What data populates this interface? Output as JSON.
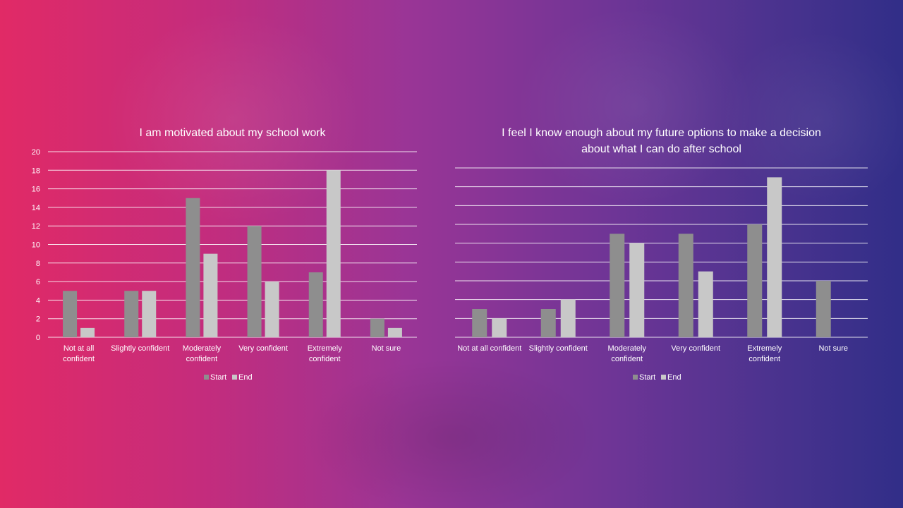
{
  "colors": {
    "start": "#8e8e8e",
    "end": "#c8c8c8"
  },
  "chart_data": [
    {
      "type": "bar",
      "title_lines": [
        "I am motivated about my school work"
      ],
      "categories": [
        [
          "Not at all",
          "confident"
        ],
        [
          "Slightly confident"
        ],
        [
          "Moderately",
          "confident"
        ],
        [
          "Very confident"
        ],
        [
          "Extremely",
          "confident"
        ],
        [
          "Not sure"
        ]
      ],
      "series": [
        {
          "name": "Start",
          "values": [
            5,
            5,
            15,
            12,
            7,
            2
          ]
        },
        {
          "name": "End",
          "values": [
            1,
            5,
            9,
            6,
            18,
            1
          ]
        }
      ],
      "ylim": [
        0,
        20
      ],
      "ystep": 2,
      "grid": true,
      "legend": "bottom"
    },
    {
      "type": "bar",
      "title_lines": [
        "I feel I know enough about my future options to make a decision",
        "about what I can do after school"
      ],
      "categories": [
        [
          "Not at all confident"
        ],
        [
          "Slightly confident"
        ],
        [
          "Moderately",
          "confident"
        ],
        [
          "Very confident"
        ],
        [
          "Extremely",
          "confident"
        ],
        [
          "Not sure"
        ]
      ],
      "series": [
        {
          "name": "Start",
          "values": [
            3,
            3,
            11,
            11,
            12,
            6
          ]
        },
        {
          "name": "End",
          "values": [
            2,
            4,
            10,
            7,
            17,
            0
          ]
        }
      ],
      "ylim": [
        0,
        18
      ],
      "ystep": 2,
      "grid": true,
      "legend": "bottom"
    }
  ]
}
